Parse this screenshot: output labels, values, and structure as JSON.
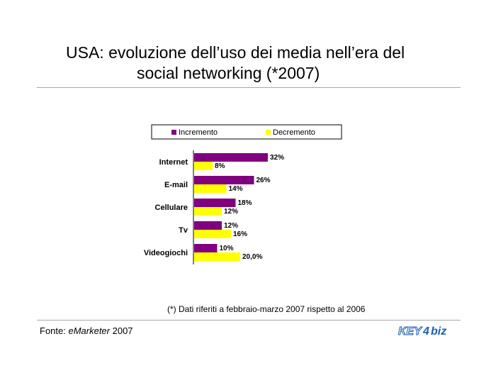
{
  "title": {
    "line1": "USA: evoluzione dell’uso dei media nell’era del",
    "line2": "social networking (*2007)"
  },
  "chart_data": {
    "type": "bar",
    "orientation": "horizontal",
    "categories": [
      "Internet",
      "E-mail",
      "Cellulare",
      "Tv",
      "Videogiochi"
    ],
    "series": [
      {
        "name": "Incremento",
        "color": "#800080",
        "values": [
          32,
          26,
          18,
          12,
          10
        ],
        "labels": [
          "32%",
          "26%",
          "18%",
          "12%",
          "10%"
        ]
      },
      {
        "name": "Decremento",
        "color": "#ffff00",
        "values": [
          8,
          14,
          12,
          16,
          20
        ],
        "labels": [
          "8%",
          "14%",
          "12%",
          "16%",
          "20,0%"
        ]
      }
    ],
    "xlim": [
      0,
      32
    ],
    "grid": false,
    "legend_position": "top"
  },
  "note": "(*) Dati riferiti a febbraio-marzo 2007 rispetto al 2006",
  "source": {
    "prefix": "Fonte: ",
    "name": "eMarketer",
    "year": " 2007"
  },
  "logo": {
    "text_left": "KEY",
    "text_right": "biz",
    "color": "#1a5fb4"
  }
}
